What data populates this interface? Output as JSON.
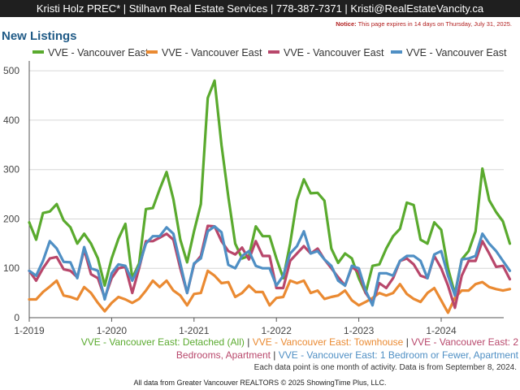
{
  "header": {
    "text": "Kristi Holz PREC* | Stilhavn Real Estate Services | 778-387-7371 | Kristi@RealEstateVancity.ca"
  },
  "notice": {
    "label": "Notice:",
    "text": " This page expires in 14 days on Thursday, July 31, 2025."
  },
  "page_title": "New Listings",
  "colors": {
    "green": "#5aaa2e",
    "orange": "#ea8a32",
    "crimson": "#b8476b",
    "blue": "#4f8fc4",
    "grid": "#d6d6d6",
    "axis": "#555555"
  },
  "caption": {
    "line1_a": "VVE - Vancouver East: Detached (All)",
    "line1_b": "VVE - Vancouver East: Townhouse",
    "line1_c": "VVE - Vancouver East: 2",
    "line2_a": "Bedrooms, Apartment",
    "line2_b": "VVE - Vancouver East: 1 Bedroom or Fewer, Apartment",
    "sep": " | "
  },
  "note": "Each data point is one month of activity. Data is from September 8, 2024.",
  "footer": "All data from Greater Vancouver REALTORS © 2025 ShowingTime Plus, LLC.",
  "chart_data": {
    "type": "line",
    "title": "New Listings",
    "x_start": "2019-01",
    "x_tick_labels": [
      "1-2019",
      "1-2020",
      "1-2021",
      "1-2022",
      "1-2023",
      "1-2024"
    ],
    "y_ticks": [
      0,
      100,
      200,
      300,
      400,
      500
    ],
    "ylim": [
      0,
      520
    ],
    "grid": true,
    "legend_position": "top",
    "series": [
      {
        "name": "VVE - Vancouver East",
        "color": "#5aaa2e",
        "values": [
          193,
          158,
          212,
          215,
          230,
          197,
          183,
          150,
          170,
          150,
          120,
          65,
          120,
          160,
          190,
          80,
          110,
          220,
          222,
          260,
          295,
          240,
          158,
          112,
          175,
          230,
          445,
          480,
          350,
          245,
          150,
          120,
          125,
          185,
          165,
          165,
          120,
          80,
          150,
          238,
          280,
          252,
          253,
          237,
          140,
          111,
          130,
          120,
          80,
          50,
          105,
          108,
          140,
          165,
          180,
          233,
          228,
          158,
          150,
          193,
          178,
          100,
          48,
          118,
          135,
          175,
          302,
          238,
          214,
          195,
          150
        ]
      },
      {
        "name": "VVE - Vancouver East",
        "color": "#ea8a32",
        "values": [
          37,
          37,
          52,
          63,
          75,
          45,
          42,
          37,
          62,
          50,
          30,
          13,
          30,
          42,
          37,
          30,
          38,
          55,
          75,
          62,
          75,
          55,
          45,
          25,
          48,
          50,
          95,
          85,
          70,
          72,
          42,
          50,
          65,
          52,
          52,
          25,
          40,
          42,
          75,
          70,
          75,
          50,
          55,
          38,
          42,
          45,
          55,
          35,
          25,
          32,
          40,
          50,
          45,
          50,
          68,
          48,
          38,
          32,
          50,
          60,
          35,
          10,
          40,
          55,
          55,
          68,
          72,
          62,
          58,
          55,
          58
        ]
      },
      {
        "name": "VVE - Vancouver East",
        "color": "#b8476b",
        "values": [
          95,
          75,
          100,
          120,
          123,
          98,
          95,
          82,
          138,
          88,
          80,
          40,
          80,
          100,
          103,
          50,
          100,
          155,
          155,
          162,
          170,
          158,
          100,
          50,
          108,
          125,
          186,
          185,
          155,
          135,
          128,
          142,
          118,
          155,
          125,
          125,
          60,
          60,
          115,
          130,
          145,
          130,
          140,
          118,
          100,
          82,
          65,
          103,
          92,
          50,
          30,
          70,
          60,
          80,
          115,
          120,
          108,
          85,
          80,
          125,
          100,
          65,
          20,
          85,
          115,
          115,
          155,
          130,
          103,
          105,
          78
        ]
      },
      {
        "name": "VVE - Vancouver East",
        "color": "#4f8fc4",
        "values": [
          95,
          85,
          115,
          155,
          140,
          113,
          112,
          80,
          143,
          100,
          95,
          37,
          90,
          108,
          105,
          75,
          105,
          150,
          165,
          165,
          183,
          170,
          110,
          50,
          110,
          120,
          175,
          185,
          173,
          107,
          100,
          125,
          135,
          105,
          100,
          100,
          65,
          85,
          130,
          145,
          175,
          130,
          135,
          118,
          105,
          75,
          65,
          105,
          100,
          55,
          25,
          90,
          90,
          85,
          115,
          125,
          125,
          115,
          80,
          128,
          135,
          85,
          45,
          118,
          120,
          125,
          170,
          150,
          135,
          115,
          95
        ]
      }
    ]
  }
}
